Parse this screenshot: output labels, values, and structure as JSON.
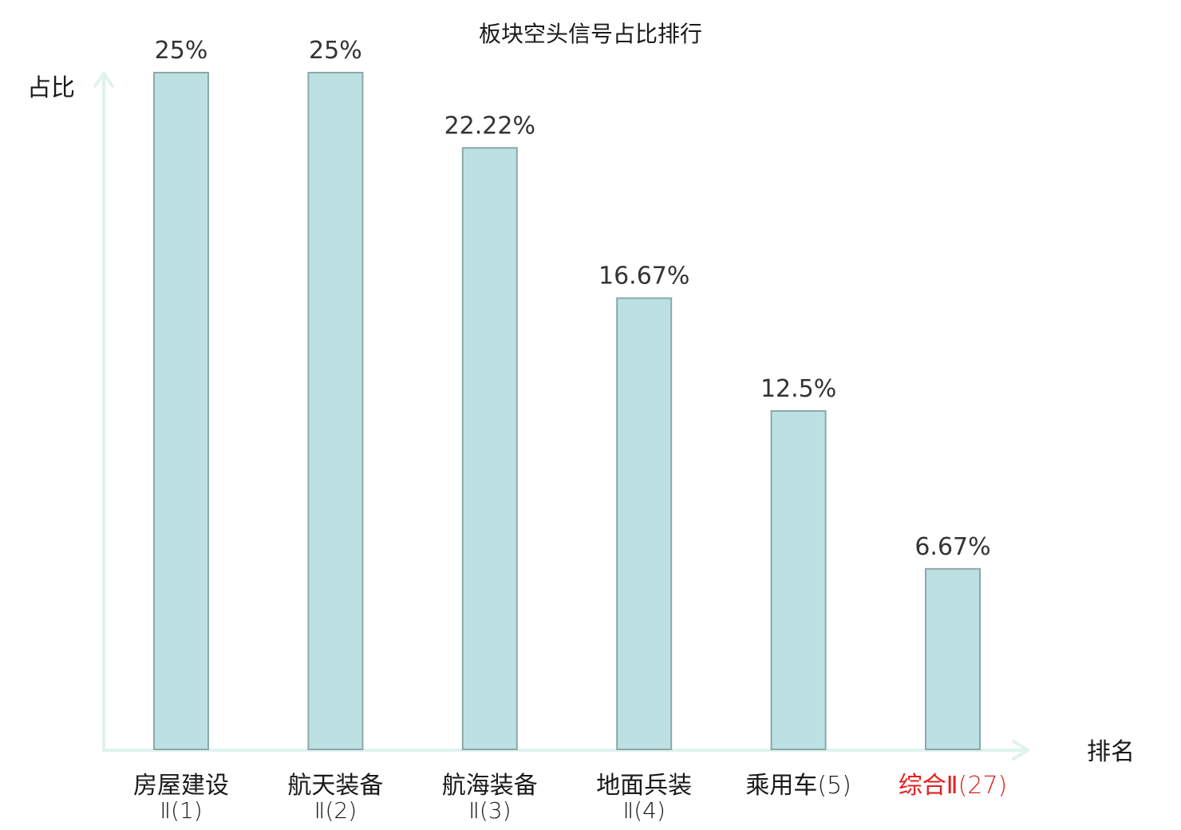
{
  "chart_data": {
    "type": "bar",
    "title": "板块空头信号占比排行",
    "ylabel": "占比",
    "xlabel": "排名",
    "categories": [
      {
        "line1": "房屋建设",
        "line2": "Ⅱ(1)",
        "highlight": false
      },
      {
        "line1": "航天装备",
        "line2": "Ⅱ(2)",
        "highlight": false
      },
      {
        "line1": "航海装备",
        "line2": "Ⅱ(3)",
        "highlight": false
      },
      {
        "line1": "地面兵装",
        "line2": "Ⅱ(4)",
        "highlight": false
      },
      {
        "line1": "乘用车",
        "rank": "(5)",
        "line2": "",
        "highlight": false
      },
      {
        "line1": "综合Ⅱ",
        "rank": "(27)",
        "line2": "",
        "highlight": true
      }
    ],
    "values": [
      25,
      25,
      22.22,
      16.67,
      12.5,
      6.67
    ],
    "value_labels": [
      "25%",
      "25%",
      "22.22%",
      "16.67%",
      "12.5%",
      "6.67%"
    ],
    "ylim": [
      0,
      25
    ],
    "grid": false,
    "colors": {
      "bar_fill": "#bde1e3",
      "bar_stroke": "#8aa9a9",
      "axis": "#dff2ee",
      "text": "#1a1a1a",
      "highlight": "#e02020"
    }
  }
}
